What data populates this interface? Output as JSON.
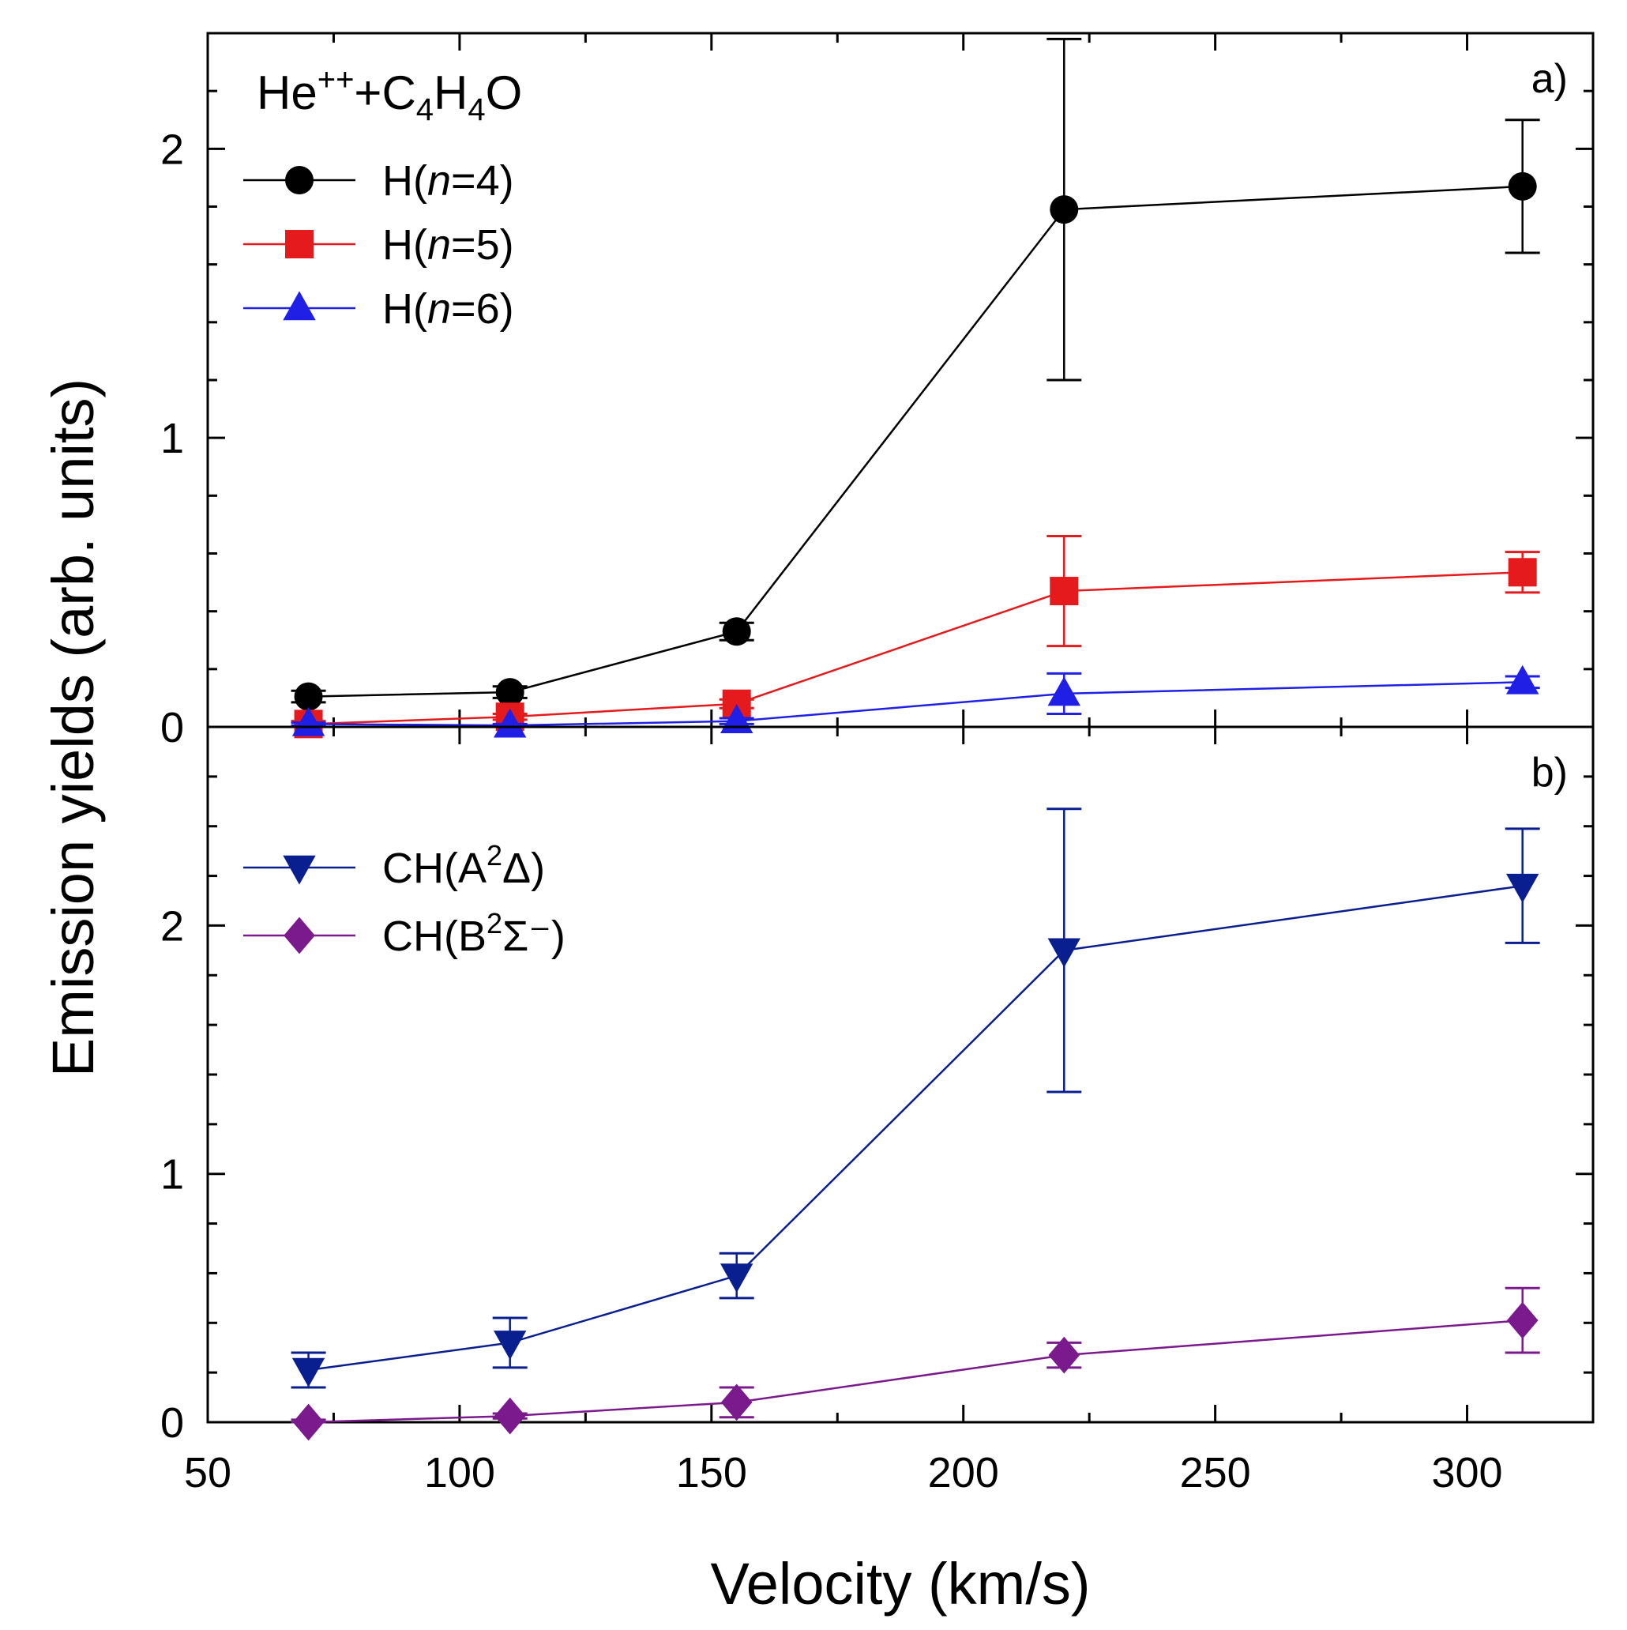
{
  "chart_data": [
    {
      "panel": "a",
      "type": "line",
      "panel_label": "a)",
      "title": "",
      "annotation": {
        "base": "He",
        "sup1": "++",
        "plus": "+C",
        "sub1": "4",
        "mid": "H",
        "sub2": "4",
        "end": "O"
      },
      "xlabel": "Velocity (km/s)",
      "ylabel": "Emission yields (arb. units)",
      "xlim": [
        50,
        325
      ],
      "ylim": [
        0,
        2.4
      ],
      "xticks": [
        50,
        100,
        150,
        200,
        250,
        300
      ],
      "yticks": [
        0,
        1,
        2
      ],
      "legend_placement": "top-left",
      "series": [
        {
          "name": "H(n=4)",
          "legend": {
            "pre": "H(",
            "italic": "n",
            "post": "=4)"
          },
          "color": "#000000",
          "marker": "circle",
          "x": [
            70,
            110,
            155,
            220,
            311
          ],
          "y": [
            0.105,
            0.12,
            0.33,
            1.79,
            1.87
          ],
          "err": [
            0.02,
            0.02,
            0.03,
            0.59,
            0.23
          ]
        },
        {
          "name": "H(n=5)",
          "legend": {
            "pre": "H(",
            "italic": "n",
            "post": "=5)"
          },
          "color": "#e41a1c",
          "marker": "square",
          "x": [
            70,
            110,
            155,
            220,
            311
          ],
          "y": [
            0.01,
            0.035,
            0.08,
            0.47,
            0.535
          ],
          "err": [
            0.01,
            0.01,
            0.015,
            0.19,
            0.07
          ]
        },
        {
          "name": "H(n=6)",
          "legend": {
            "pre": "H(",
            "italic": "n",
            "post": "=6)"
          },
          "color": "#1f1fe6",
          "marker": "triangle-up",
          "x": [
            70,
            110,
            155,
            220,
            311
          ],
          "y": [
            0.01,
            0.005,
            0.02,
            0.115,
            0.155
          ],
          "err": [
            0.005,
            0.005,
            0.01,
            0.07,
            0.02
          ]
        }
      ]
    },
    {
      "panel": "b",
      "type": "line",
      "panel_label": "b)",
      "title": "",
      "xlabel": "Velocity (km/s)",
      "ylabel": "Emission yields (arb. units)",
      "xlim": [
        50,
        325
      ],
      "ylim": [
        0,
        2.8
      ],
      "xticks": [
        50,
        100,
        150,
        200,
        250,
        300
      ],
      "yticks": [
        0,
        1,
        2
      ],
      "legend_placement": "upper-left",
      "series": [
        {
          "name": "CH(A²Δ)",
          "legend": {
            "pre": "CH(A",
            "sup": "2",
            "post": "Δ)"
          },
          "color": "#0a1f8f",
          "marker": "triangle-down",
          "x": [
            70,
            110,
            155,
            220,
            311
          ],
          "y": [
            0.21,
            0.32,
            0.59,
            1.9,
            2.16
          ],
          "err": [
            0.07,
            0.1,
            0.09,
            0.57,
            0.23
          ]
        },
        {
          "name": "CH(B²Σ⁻)",
          "legend": {
            "pre": "CH(B",
            "sup": "2",
            "post": "Σ⁻)"
          },
          "color": "#7a1a8c",
          "marker": "diamond",
          "x": [
            70,
            110,
            155,
            220,
            311
          ],
          "y": [
            0.0,
            0.025,
            0.08,
            0.27,
            0.41
          ],
          "err": [
            0.01,
            0.01,
            0.06,
            0.05,
            0.13
          ]
        }
      ]
    }
  ],
  "axis": {
    "xlabel": "Velocity (km/s)",
    "ylabel": "Emission yields (arb. units)",
    "xtick_labels": [
      "50",
      "100",
      "150",
      "200",
      "250",
      "300"
    ],
    "ytick_labels_a": [
      "0",
      "1",
      "2"
    ],
    "ytick_labels_b": [
      "0",
      "1",
      "2"
    ]
  }
}
